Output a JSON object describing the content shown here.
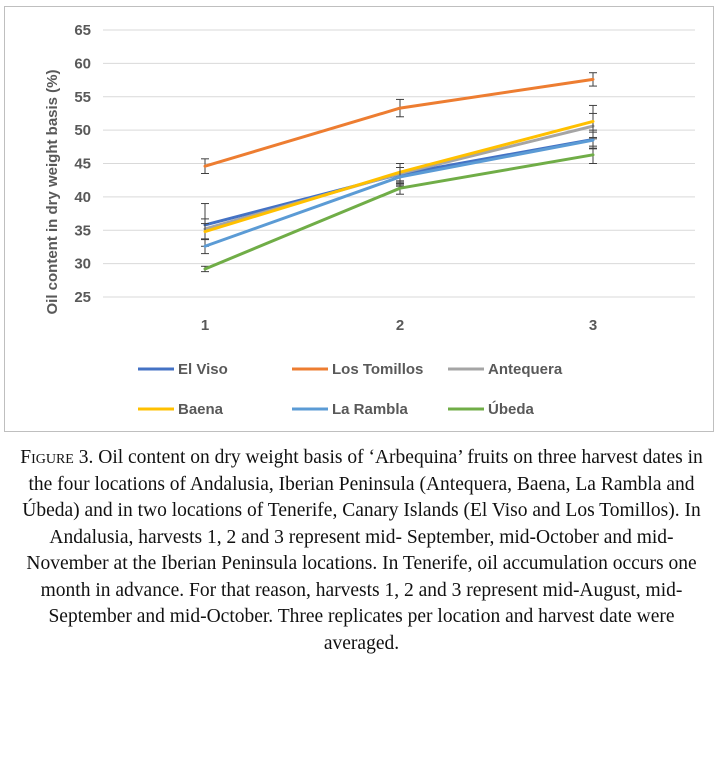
{
  "chart_data": {
    "type": "line",
    "title": "",
    "xlabel": "",
    "ylabel": "Oil content in dry weight basis (%)",
    "categories": [
      "1",
      "2",
      "3"
    ],
    "ylim": [
      25,
      65
    ],
    "yticks": [
      "25",
      "30",
      "35",
      "40",
      "45",
      "50",
      "55",
      "60",
      "65"
    ],
    "grid": true,
    "legend_position": "bottom",
    "series": [
      {
        "name": "El Viso",
        "color": "#4472c4",
        "values": [
          35.8,
          43.4,
          48.6
        ],
        "errors": [
          3.2,
          1.6,
          1.4
        ]
      },
      {
        "name": "Los Tomillos",
        "color": "#ed7d31",
        "values": [
          44.6,
          53.3,
          57.6
        ],
        "errors": [
          1.1,
          1.3,
          1.0
        ]
      },
      {
        "name": "Antequera",
        "color": "#a5a5a5",
        "values": [
          35.2,
          43.5,
          50.6
        ],
        "errors": [
          1.5,
          1.5,
          1.9
        ]
      },
      {
        "name": "Baena",
        "color": "#ffc000",
        "values": [
          34.8,
          43.7,
          51.3
        ],
        "errors": [
          1.2,
          1.3,
          2.4
        ]
      },
      {
        "name": "La Rambla",
        "color": "#5b9bd5",
        "values": [
          32.6,
          43.0,
          48.5
        ],
        "errors": [
          1.1,
          1.4,
          1.2
        ]
      },
      {
        "name": "Úbeda",
        "color": "#70ad47",
        "values": [
          29.2,
          41.3,
          46.3
        ],
        "errors": [
          0.4,
          0.9,
          1.3
        ]
      }
    ]
  },
  "caption": {
    "label": "Figure",
    "number": " 3.",
    "text": " Oil content on dry weight basis of ‘Arbequina’ fruits on three harvest dates in the four locations of Andalusia, Iberian Peninsula (Antequera, Baena, La Rambla and Úbeda) and in two locations of Tenerife, Canary Islands (El Viso and Los Tomillos). In Andalusia, harvests 1, 2 and 3 represent mid- September, mid-October and mid-November at the Iberian Peninsula locations. In Tenerife, oil accumulation occurs one month in advance. For that reason, harvests 1, 2 and 3 represent mid-August, mid- September and mid-October. Three replicates per location and harvest date were averaged."
  }
}
